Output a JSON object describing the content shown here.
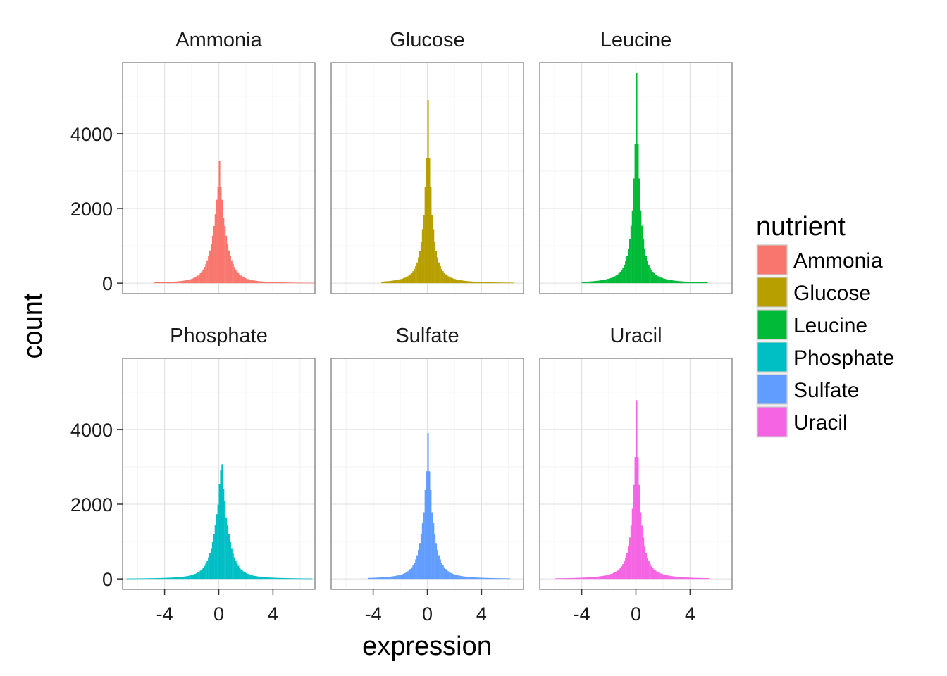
{
  "chart_data": {
    "type": "bar",
    "subtype": "faceted histogram",
    "xlabel": "expression",
    "ylabel": "count",
    "xlim": [
      -7.1,
      7.1
    ],
    "ylim": [
      -280,
      5900
    ],
    "x_ticks": [
      -4,
      0,
      4
    ],
    "x_tick_labels": [
      "-4",
      "0",
      "4"
    ],
    "y_ticks": [
      0,
      2000,
      4000
    ],
    "y_tick_labels": [
      "0",
      "2000",
      "4000"
    ],
    "grid": true,
    "legend": {
      "title": "nutrient",
      "position": "right",
      "entries": [
        "Ammonia",
        "Glucose",
        "Leucine",
        "Phosphate",
        "Sulfate",
        "Uracil"
      ]
    },
    "facets": [
      {
        "name": "Ammonia",
        "color": "#F8766D",
        "peak": 3280,
        "peak_x": 0.05,
        "spread": 0.42,
        "tail": 0.9,
        "range": [
          -4.8,
          7.0
        ]
      },
      {
        "name": "Glucose",
        "color": "#B79F00",
        "peak": 4900,
        "peak_x": 0.05,
        "spread": 0.24,
        "tail": 0.75,
        "range": [
          -3.4,
          6.3
        ]
      },
      {
        "name": "Leucine",
        "color": "#00BA38",
        "peak": 5620,
        "peak_x": 0.05,
        "spread": 0.22,
        "tail": 0.75,
        "range": [
          -4.0,
          5.3
        ]
      },
      {
        "name": "Phosphate",
        "color": "#00BFC4",
        "peak": 3380,
        "peak_x": 0.2,
        "spread": 0.42,
        "tail": 0.9,
        "range": [
          -6.8,
          6.8
        ]
      },
      {
        "name": "Sulfate",
        "color": "#619CFF",
        "peak": 3900,
        "peak_x": 0.05,
        "spread": 0.32,
        "tail": 0.85,
        "range": [
          -4.4,
          6.0
        ]
      },
      {
        "name": "Uracil",
        "color": "#F564E3",
        "peak": 4780,
        "peak_x": 0.05,
        "spread": 0.24,
        "tail": 0.8,
        "range": [
          -6.0,
          5.3
        ]
      }
    ]
  }
}
